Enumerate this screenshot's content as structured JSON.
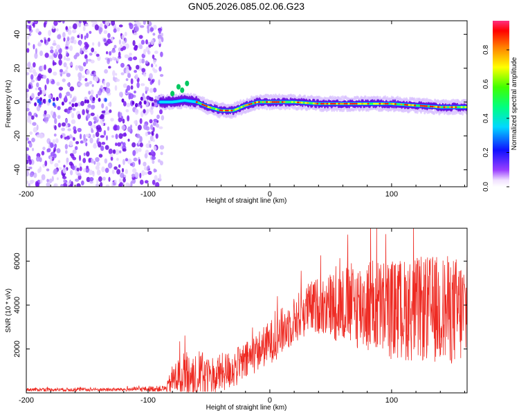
{
  "title": "GN05.2026.085.02.06.G23",
  "colors": {
    "snr_line": "#ee2a22",
    "scatter_purple": "#7a1cf0",
    "axis": "#000000"
  },
  "chart_data": [
    {
      "type": "heatmap",
      "name": "spectrogram",
      "xlabel": "Height of straight line (km)",
      "ylabel": "Frequency (Hz)",
      "xlim": [
        -200,
        162
      ],
      "ylim": [
        -50,
        48
      ],
      "xticks": [
        -200,
        -100,
        0,
        100
      ],
      "xtick_labels": [
        "-200",
        "-100",
        "0",
        "100"
      ],
      "yticks": [
        -40,
        -20,
        0,
        20,
        40
      ],
      "ytick_labels": [
        "-40",
        "-20",
        "0",
        "20",
        "40"
      ],
      "noise_region_x": [
        -200,
        -88
      ],
      "ridge": {
        "x": [
          -90,
          -80,
          -70,
          -60,
          -50,
          -40,
          -30,
          -20,
          -10,
          0,
          10,
          20,
          40,
          60,
          80,
          100,
          120,
          140,
          160
        ],
        "frequency": [
          0,
          0,
          1,
          0,
          -3,
          -5,
          -5,
          -2,
          0,
          0,
          0,
          0,
          -1,
          -1,
          -1,
          -1,
          -2,
          -3,
          -3
        ]
      },
      "colorbar": {
        "label": "Normalized spectral amplitude",
        "range": [
          0,
          0.97
        ],
        "ticks": [
          0,
          0.2,
          0.4,
          0.6,
          0.8
        ],
        "tick_labels": [
          "0.0",
          "0.2",
          "0.4",
          "0.6",
          "0.8"
        ]
      }
    },
    {
      "type": "line",
      "name": "snr",
      "xlabel": "Height of straight line (km)",
      "ylabel": "SNR (10 * v/v)",
      "xlim": [
        -200,
        162
      ],
      "ylim": [
        0,
        7500
      ],
      "xticks": [
        -200,
        -100,
        0,
        100
      ],
      "xtick_labels": [
        "-200",
        "-100",
        "0",
        "100"
      ],
      "yticks": [
        2000,
        4000,
        6000
      ],
      "ytick_labels": [
        "2000",
        "4000",
        "6000"
      ],
      "envelope": {
        "x": [
          -200,
          -120,
          -85,
          -80,
          -70,
          -60,
          -50,
          -40,
          -30,
          -20,
          -10,
          0,
          10,
          20,
          30,
          40,
          60,
          80,
          100,
          120,
          140,
          160
        ],
        "mean": [
          150,
          150,
          200,
          600,
          900,
          800,
          700,
          900,
          1100,
          1400,
          1900,
          2300,
          2800,
          3300,
          3800,
          4000,
          4000,
          4000,
          3800,
          3800,
          3800,
          3700
        ],
        "spread": [
          80,
          80,
          150,
          700,
          1100,
          1200,
          1000,
          900,
          900,
          900,
          900,
          1000,
          1100,
          1100,
          1200,
          1300,
          1800,
          2200,
          2300,
          2400,
          2500,
          2500
        ]
      }
    }
  ]
}
